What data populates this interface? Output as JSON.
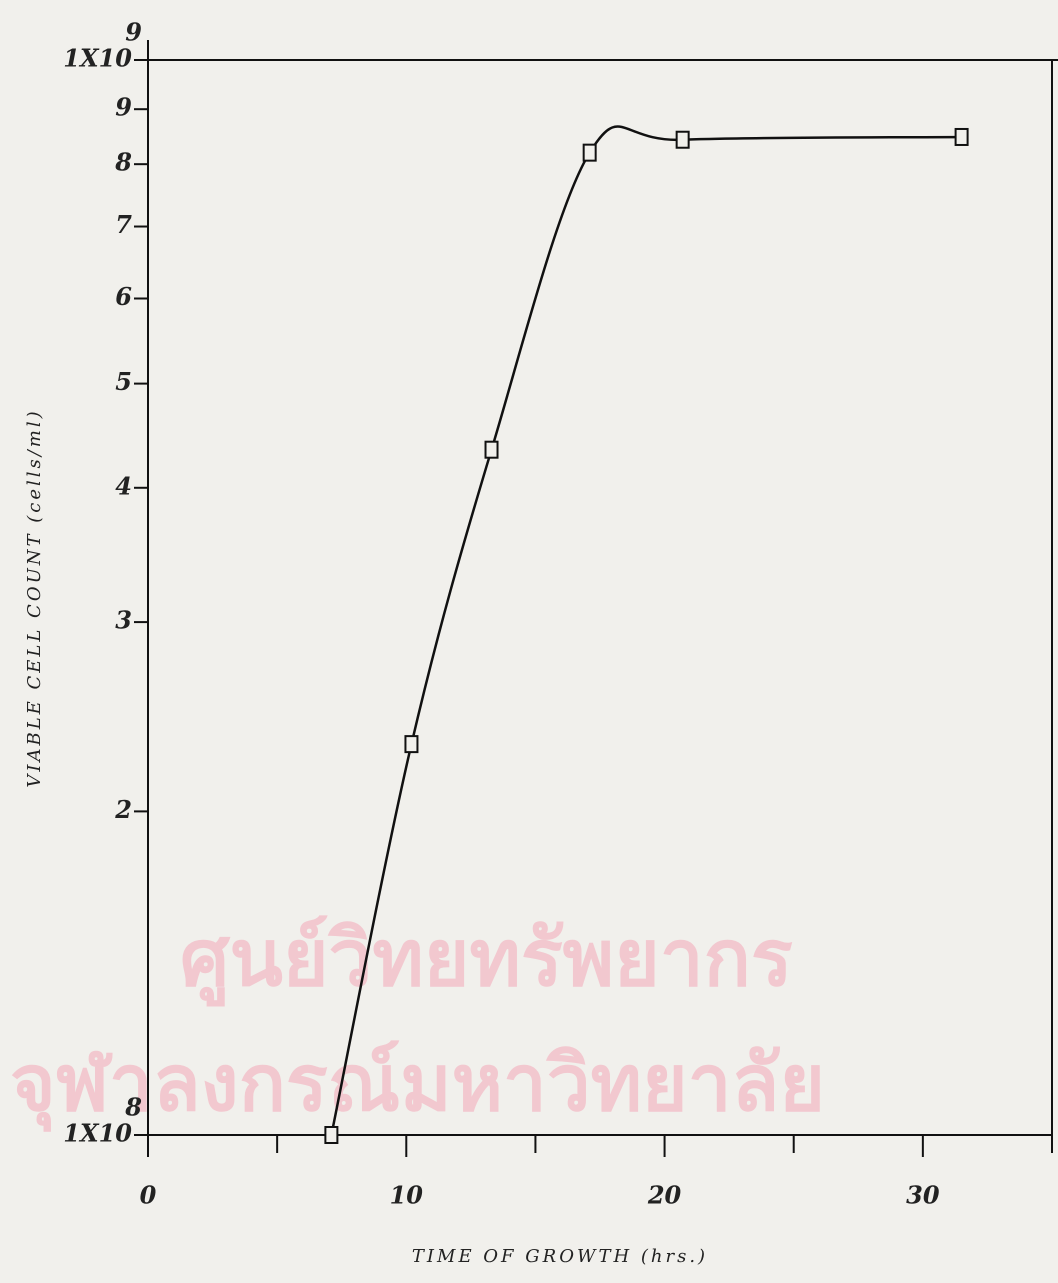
{
  "chart_data": {
    "type": "line",
    "x_label": "TIME OF GROWTH (hrs.)",
    "y_label": "VIABLE CELL COUNT (cells/ml)",
    "watermark": [
      "ศูนย์วิทยทรัพยากร",
      "จุฬาลงกรณ์มหาวิทยาลัย"
    ],
    "x": [
      7.1,
      10.2,
      13.3,
      17.1,
      20.7,
      31.5
    ],
    "values": [
      100000000,
      231000000,
      434000000,
      820000000,
      843000000,
      848000000
    ],
    "color": "#111111",
    "xlim": [
      0,
      35
    ],
    "xticks": [
      0,
      10,
      20,
      30
    ],
    "xminor_ticks": [
      5,
      15,
      25,
      35
    ],
    "ylim": [
      100000000,
      1000000000
    ],
    "ylog": true,
    "yticks": [
      {
        "value": 100000000,
        "label": "1X10",
        "exponent": "8"
      },
      {
        "value": 200000000,
        "label": "2"
      },
      {
        "value": 300000000,
        "label": "3"
      },
      {
        "value": 400000000,
        "label": "4"
      },
      {
        "value": 500000000,
        "label": "5"
      },
      {
        "value": 600000000,
        "label": "6"
      },
      {
        "value": 700000000,
        "label": "7"
      },
      {
        "value": 800000000,
        "label": "8"
      },
      {
        "value": 900000000,
        "label": "9"
      },
      {
        "value": 1000000000,
        "label": "1X10",
        "exponent": "9"
      }
    ]
  }
}
